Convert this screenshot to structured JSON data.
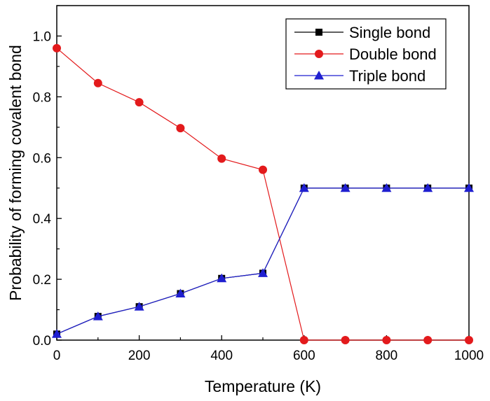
{
  "chart_data": {
    "type": "line",
    "xlabel": "Temperature (K)",
    "ylabel": "Probability of forming covalent bond",
    "xlim": [
      0,
      1000
    ],
    "ylim": [
      0,
      1.1
    ],
    "xticks": [
      "0",
      "200",
      "400",
      "600",
      "800",
      "1000"
    ],
    "yticks": [
      "0.0",
      "0.2",
      "0.4",
      "0.6",
      "0.8",
      "1.0"
    ],
    "x": [
      0,
      100,
      200,
      300,
      400,
      500,
      600,
      700,
      800,
      900,
      1000
    ],
    "grid": false,
    "legend_position": "top-right",
    "series": [
      {
        "name": "Single bond",
        "color": "#000000",
        "marker": "square",
        "values": [
          0.02,
          0.078,
          0.11,
          0.153,
          0.203,
          0.22,
          0.5,
          0.5,
          0.5,
          0.5,
          0.5
        ]
      },
      {
        "name": "Double bond",
        "color": "#e31a1c",
        "marker": "circle",
        "values": [
          0.96,
          0.845,
          0.782,
          0.697,
          0.597,
          0.56,
          0.0,
          0.0,
          0.0,
          0.0,
          0.0
        ]
      },
      {
        "name": "Triple bond",
        "color": "#1f1fd0",
        "marker": "triangle",
        "values": [
          0.02,
          0.078,
          0.11,
          0.153,
          0.203,
          0.22,
          0.5,
          0.5,
          0.5,
          0.5,
          0.5
        ]
      }
    ]
  }
}
